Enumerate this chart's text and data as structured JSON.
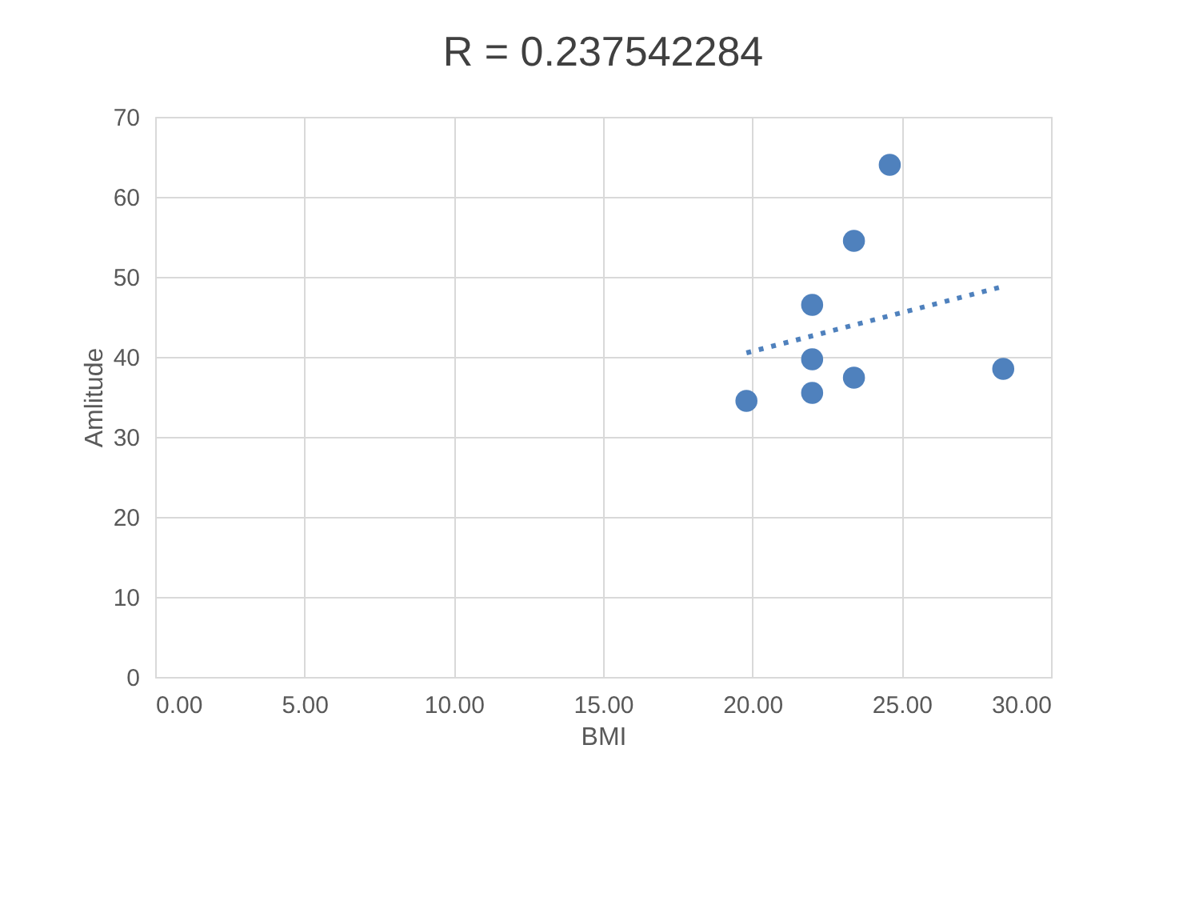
{
  "chart_data": {
    "type": "scatter",
    "title": "R = 0.237542284",
    "xlabel": "BMI",
    "ylabel": "Amlitude",
    "xlim": [
      0,
      30
    ],
    "xticks": [
      {
        "value": 0,
        "label": "0.00"
      },
      {
        "value": 5,
        "label": "5.00"
      },
      {
        "value": 10,
        "label": "10.00"
      },
      {
        "value": 15,
        "label": "15.00"
      },
      {
        "value": 20,
        "label": "20.00"
      },
      {
        "value": 25,
        "label": "25.00"
      },
      {
        "value": 30,
        "label": "30.00"
      }
    ],
    "ylim": [
      0,
      70
    ],
    "yticks": [
      0,
      10,
      20,
      30,
      40,
      50,
      60,
      70
    ],
    "grid": true,
    "series": [
      {
        "marker": "circle",
        "color": "#4f81bd",
        "x": [
          19.8,
          22.0,
          22.0,
          22.0,
          23.4,
          23.4,
          24.6,
          28.4
        ],
        "values": [
          34.5,
          39.7,
          46.5,
          35.5,
          54.5,
          37.4,
          64.0,
          38.5
        ]
      },
      {
        "type": "line",
        "color": "#4f81bd",
        "line_style": "dotted",
        "x": [
          19.8,
          28.4
        ],
        "values": [
          40.5,
          48.8
        ]
      }
    ]
  }
}
